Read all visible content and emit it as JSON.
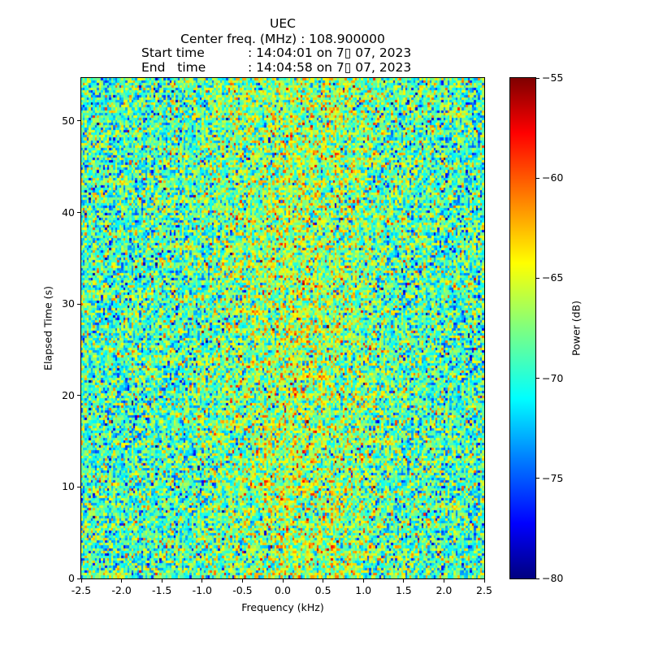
{
  "title": {
    "line1": "UEC",
    "line2": "Center freq. (MHz) : 108.900000",
    "start_label": "Start time",
    "start_value": ": 14:04:01 on 7▯ 07, 2023",
    "end_label": "End   time",
    "end_value": ": 14:04:58 on 7▯ 07, 2023"
  },
  "chart_data": {
    "type": "heatmap",
    "title": "UEC",
    "xlabel": "Frequency (kHz)",
    "ylabel": "Elapsed Time (s)",
    "xlim": [
      -2.5,
      2.5
    ],
    "ylim": [
      0,
      54.7
    ],
    "xticks": [
      "-2.5",
      "-2.0",
      "-1.5",
      "-1.0",
      "-0.5",
      "0.0",
      "0.5",
      "1.0",
      "1.5",
      "2.0",
      "2.5"
    ],
    "yticks": [
      "0",
      "10",
      "20",
      "30",
      "40",
      "50"
    ],
    "colormap": "jet",
    "clim": [
      -80,
      -55
    ],
    "colorbar_label": "Power (dB)",
    "colorbar_ticks": [
      "−80",
      "−75",
      "−70",
      "−65",
      "−60",
      "−55"
    ],
    "noise_mean_db": -69,
    "noise_std_db": 3.5,
    "center_enhancement_db": 2.5
  }
}
